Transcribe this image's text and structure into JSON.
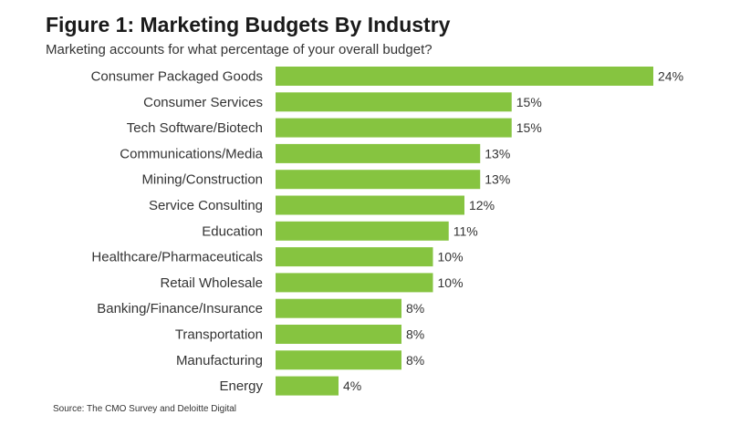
{
  "chart_data": {
    "type": "bar",
    "orientation": "horizontal",
    "title": "Figure 1: Marketing Budgets By Industry",
    "subtitle": "Marketing accounts for what percentage of your overall budget?",
    "categories": [
      "Consumer Packaged Goods",
      "Consumer Services",
      "Tech Software/Biotech",
      "Communications/Media",
      "Mining/Construction",
      "Service Consulting",
      "Education",
      "Healthcare/Pharmaceuticals",
      "Retail Wholesale",
      "Banking/Finance/Insurance",
      "Transportation",
      "Manufacturing",
      "Energy"
    ],
    "values": [
      24,
      15,
      15,
      13,
      13,
      12,
      11,
      10,
      10,
      8,
      8,
      8,
      4
    ],
    "value_suffix": "%",
    "xlim": [
      0,
      24
    ],
    "bar_color": "#86c440",
    "grid": false,
    "source": "Source: The CMO Survey and Deloitte Digital"
  }
}
